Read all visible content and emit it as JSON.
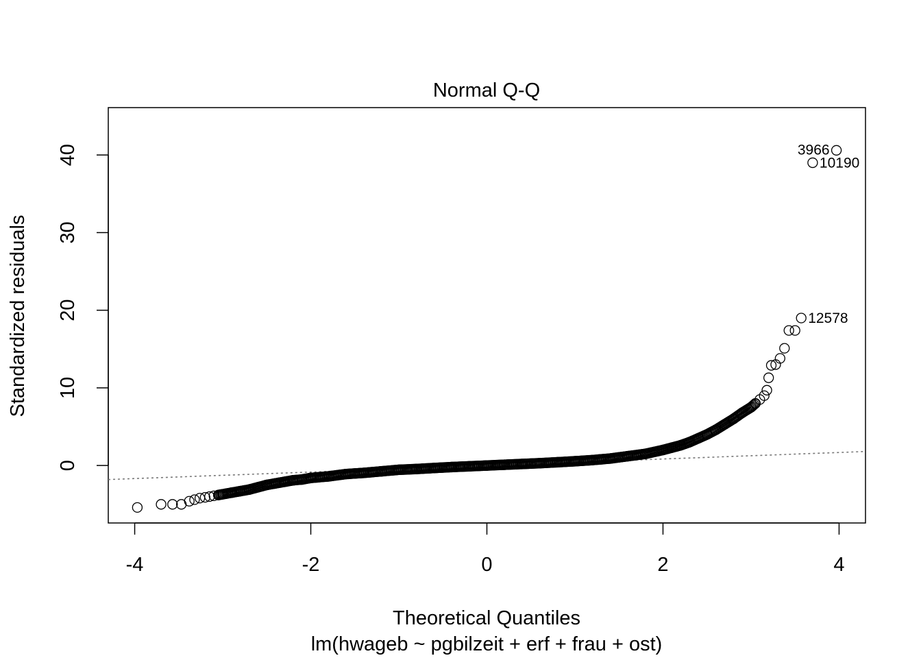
{
  "chart_data": {
    "type": "scatter",
    "title": "Normal Q-Q",
    "xlabel": "Theoretical Quantiles",
    "sublabel": "lm(hwageb ~ pgbilzeit + erf + frau + ost)",
    "ylabel": "Standardized residuals",
    "xlim": [
      -4.3,
      4.3
    ],
    "ylim": [
      -7.4,
      46.1
    ],
    "x_ticks": [
      -4,
      -2,
      0,
      2,
      4
    ],
    "x_tick_labels": [
      "-4",
      "-2",
      "0",
      "2",
      "4"
    ],
    "y_ticks": [
      0,
      10,
      20,
      30,
      40
    ],
    "y_tick_labels": [
      "0",
      "10",
      "20",
      "30",
      "40"
    ],
    "reference_line": {
      "style": "dotted",
      "color": "#777777",
      "slope": 0.42,
      "intercept": 0.0
    },
    "grid": false,
    "labeled_points": [
      {
        "label": "3966",
        "x": 3.97,
        "y": 40.6
      },
      {
        "label": "10190",
        "x": 3.7,
        "y": 39.0
      },
      {
        "label": "12578",
        "x": 3.57,
        "y": 19.0
      }
    ],
    "points": [
      [
        -3.97,
        -5.4
      ],
      [
        -3.7,
        -5.0
      ],
      [
        -3.57,
        -5.0
      ],
      [
        -3.47,
        -5.0
      ],
      [
        -3.38,
        -4.6
      ],
      [
        -3.32,
        -4.4
      ],
      [
        -3.26,
        -4.2
      ],
      [
        -3.2,
        -4.1
      ],
      [
        -3.15,
        -4.0
      ],
      [
        -3.1,
        -3.9
      ],
      [
        -3.05,
        -3.8
      ],
      [
        -3.0,
        -3.7
      ],
      [
        -2.9,
        -3.5
      ],
      [
        -2.8,
        -3.3
      ],
      [
        -2.7,
        -3.1
      ],
      [
        -2.6,
        -2.8
      ],
      [
        -2.5,
        -2.5
      ],
      [
        -2.4,
        -2.3
      ],
      [
        -2.3,
        -2.1
      ],
      [
        -2.2,
        -1.9
      ],
      [
        -2.1,
        -1.8
      ],
      [
        -2.0,
        -1.6
      ],
      [
        -1.8,
        -1.4
      ],
      [
        -1.6,
        -1.1
      ],
      [
        -1.4,
        -0.95
      ],
      [
        -1.2,
        -0.75
      ],
      [
        -1.0,
        -0.55
      ],
      [
        -0.8,
        -0.45
      ],
      [
        -0.6,
        -0.32
      ],
      [
        -0.4,
        -0.2
      ],
      [
        -0.2,
        -0.1
      ],
      [
        0.0,
        0.0
      ],
      [
        0.2,
        0.1
      ],
      [
        0.4,
        0.2
      ],
      [
        0.6,
        0.3
      ],
      [
        0.8,
        0.42
      ],
      [
        1.0,
        0.55
      ],
      [
        1.2,
        0.7
      ],
      [
        1.4,
        0.9
      ],
      [
        1.6,
        1.2
      ],
      [
        1.8,
        1.5
      ],
      [
        2.0,
        2.0
      ],
      [
        2.1,
        2.3
      ],
      [
        2.2,
        2.6
      ],
      [
        2.3,
        3.0
      ],
      [
        2.4,
        3.5
      ],
      [
        2.5,
        4.0
      ],
      [
        2.6,
        4.6
      ],
      [
        2.7,
        5.3
      ],
      [
        2.8,
        6.0
      ],
      [
        2.9,
        6.8
      ],
      [
        3.0,
        7.5
      ],
      [
        3.05,
        8.0
      ],
      [
        3.1,
        8.5
      ],
      [
        3.15,
        9.0
      ],
      [
        3.18,
        9.7
      ],
      [
        3.2,
        11.3
      ],
      [
        3.23,
        12.9
      ],
      [
        3.28,
        13.0
      ],
      [
        3.33,
        13.8
      ],
      [
        3.38,
        15.1
      ],
      [
        3.43,
        17.4
      ],
      [
        3.5,
        17.4
      ],
      [
        3.57,
        19.0
      ],
      [
        3.7,
        39.0
      ],
      [
        3.97,
        40.6
      ]
    ]
  }
}
